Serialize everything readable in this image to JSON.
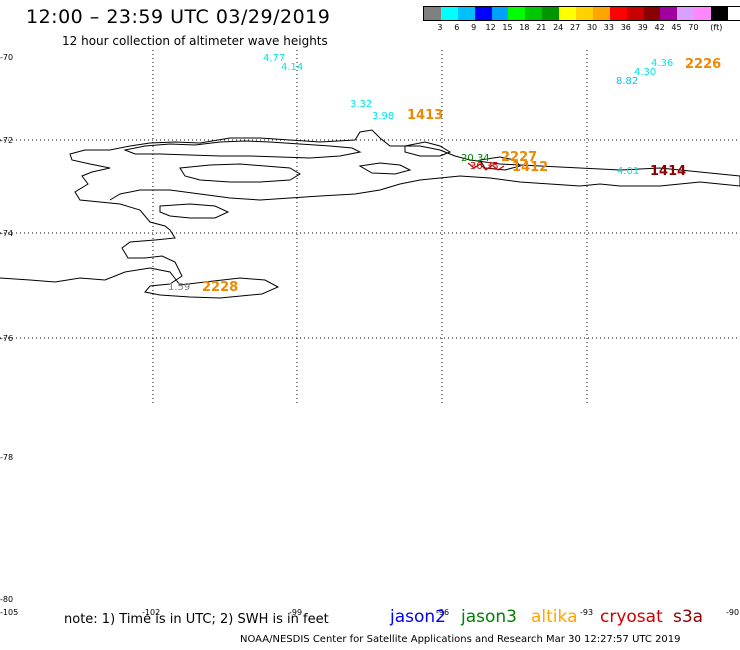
{
  "title": "12:00 – 23:59 UTC 03/29/2019",
  "subtitle": "12 hour collection of altimeter wave heights",
  "legend": {
    "colors": [
      "#808080",
      "#00ffff",
      "#00bfff",
      "#0000ff",
      "#00a0ff",
      "#00ff00",
      "#00c800",
      "#009600",
      "#ffff00",
      "#ffd200",
      "#ffa500",
      "#ff0000",
      "#c80000",
      "#8b0000",
      "#a000a0",
      "#d8a0ff",
      "#ff88ff",
      "#000000"
    ],
    "labels": [
      "3",
      "6",
      "9",
      "12",
      "15",
      "18",
      "21",
      "24",
      "27",
      "30",
      "33",
      "36",
      "39",
      "42",
      "45",
      "70",
      "(ft)"
    ]
  },
  "lat_labels": [
    "-70",
    "-72",
    "-74",
    "-76",
    "-78",
    "-80"
  ],
  "lon_labels": [
    "-105",
    "-102",
    "-99",
    "-96",
    "-93",
    "-90"
  ],
  "wave_heights": [
    {
      "text": "4.77",
      "color": "#00e5e5"
    },
    {
      "text": "4.14",
      "color": "#00e5e5"
    },
    {
      "text": "3.32",
      "color": "#00e5e5"
    },
    {
      "text": "3.98",
      "color": "#00e5e5"
    },
    {
      "text": "4.36",
      "color": "#00e5e5"
    },
    {
      "text": "4.30",
      "color": "#00e5e5"
    },
    {
      "text": "8.82",
      "color": "#00bfff"
    },
    {
      "text": "20.34",
      "color": "#008000"
    },
    {
      "text": "30.35",
      "color": "#cc0000"
    },
    {
      "text": "4.01",
      "color": "#00e5e5"
    },
    {
      "text": "1.59",
      "color": "#808080"
    }
  ],
  "pass_ids": [
    {
      "text": "2226",
      "color": "#ee8800"
    },
    {
      "text": "1413",
      "color": "#ee8800"
    },
    {
      "text": "2227",
      "color": "#ee8800"
    },
    {
      "text": "1412",
      "color": "#ee8800"
    },
    {
      "text": "1414",
      "color": "#8b0000"
    },
    {
      "text": "2228",
      "color": "#ee8800"
    }
  ],
  "note": "note:  1) Time is in UTC;  2) SWH is in feet",
  "satellites": [
    {
      "name": "jason2",
      "color": "#0000ff"
    },
    {
      "name": "jason3",
      "color": "#008000"
    },
    {
      "name": "altika",
      "color": "#ffa500"
    },
    {
      "name": "cryosat",
      "color": "#cc0000"
    },
    {
      "name": "s3a",
      "color": "#8b0000"
    }
  ],
  "credit": "NOAA/NESDIS Center for Satellite Applications and Research    Mar 30 12:27:57 UTC 2019"
}
